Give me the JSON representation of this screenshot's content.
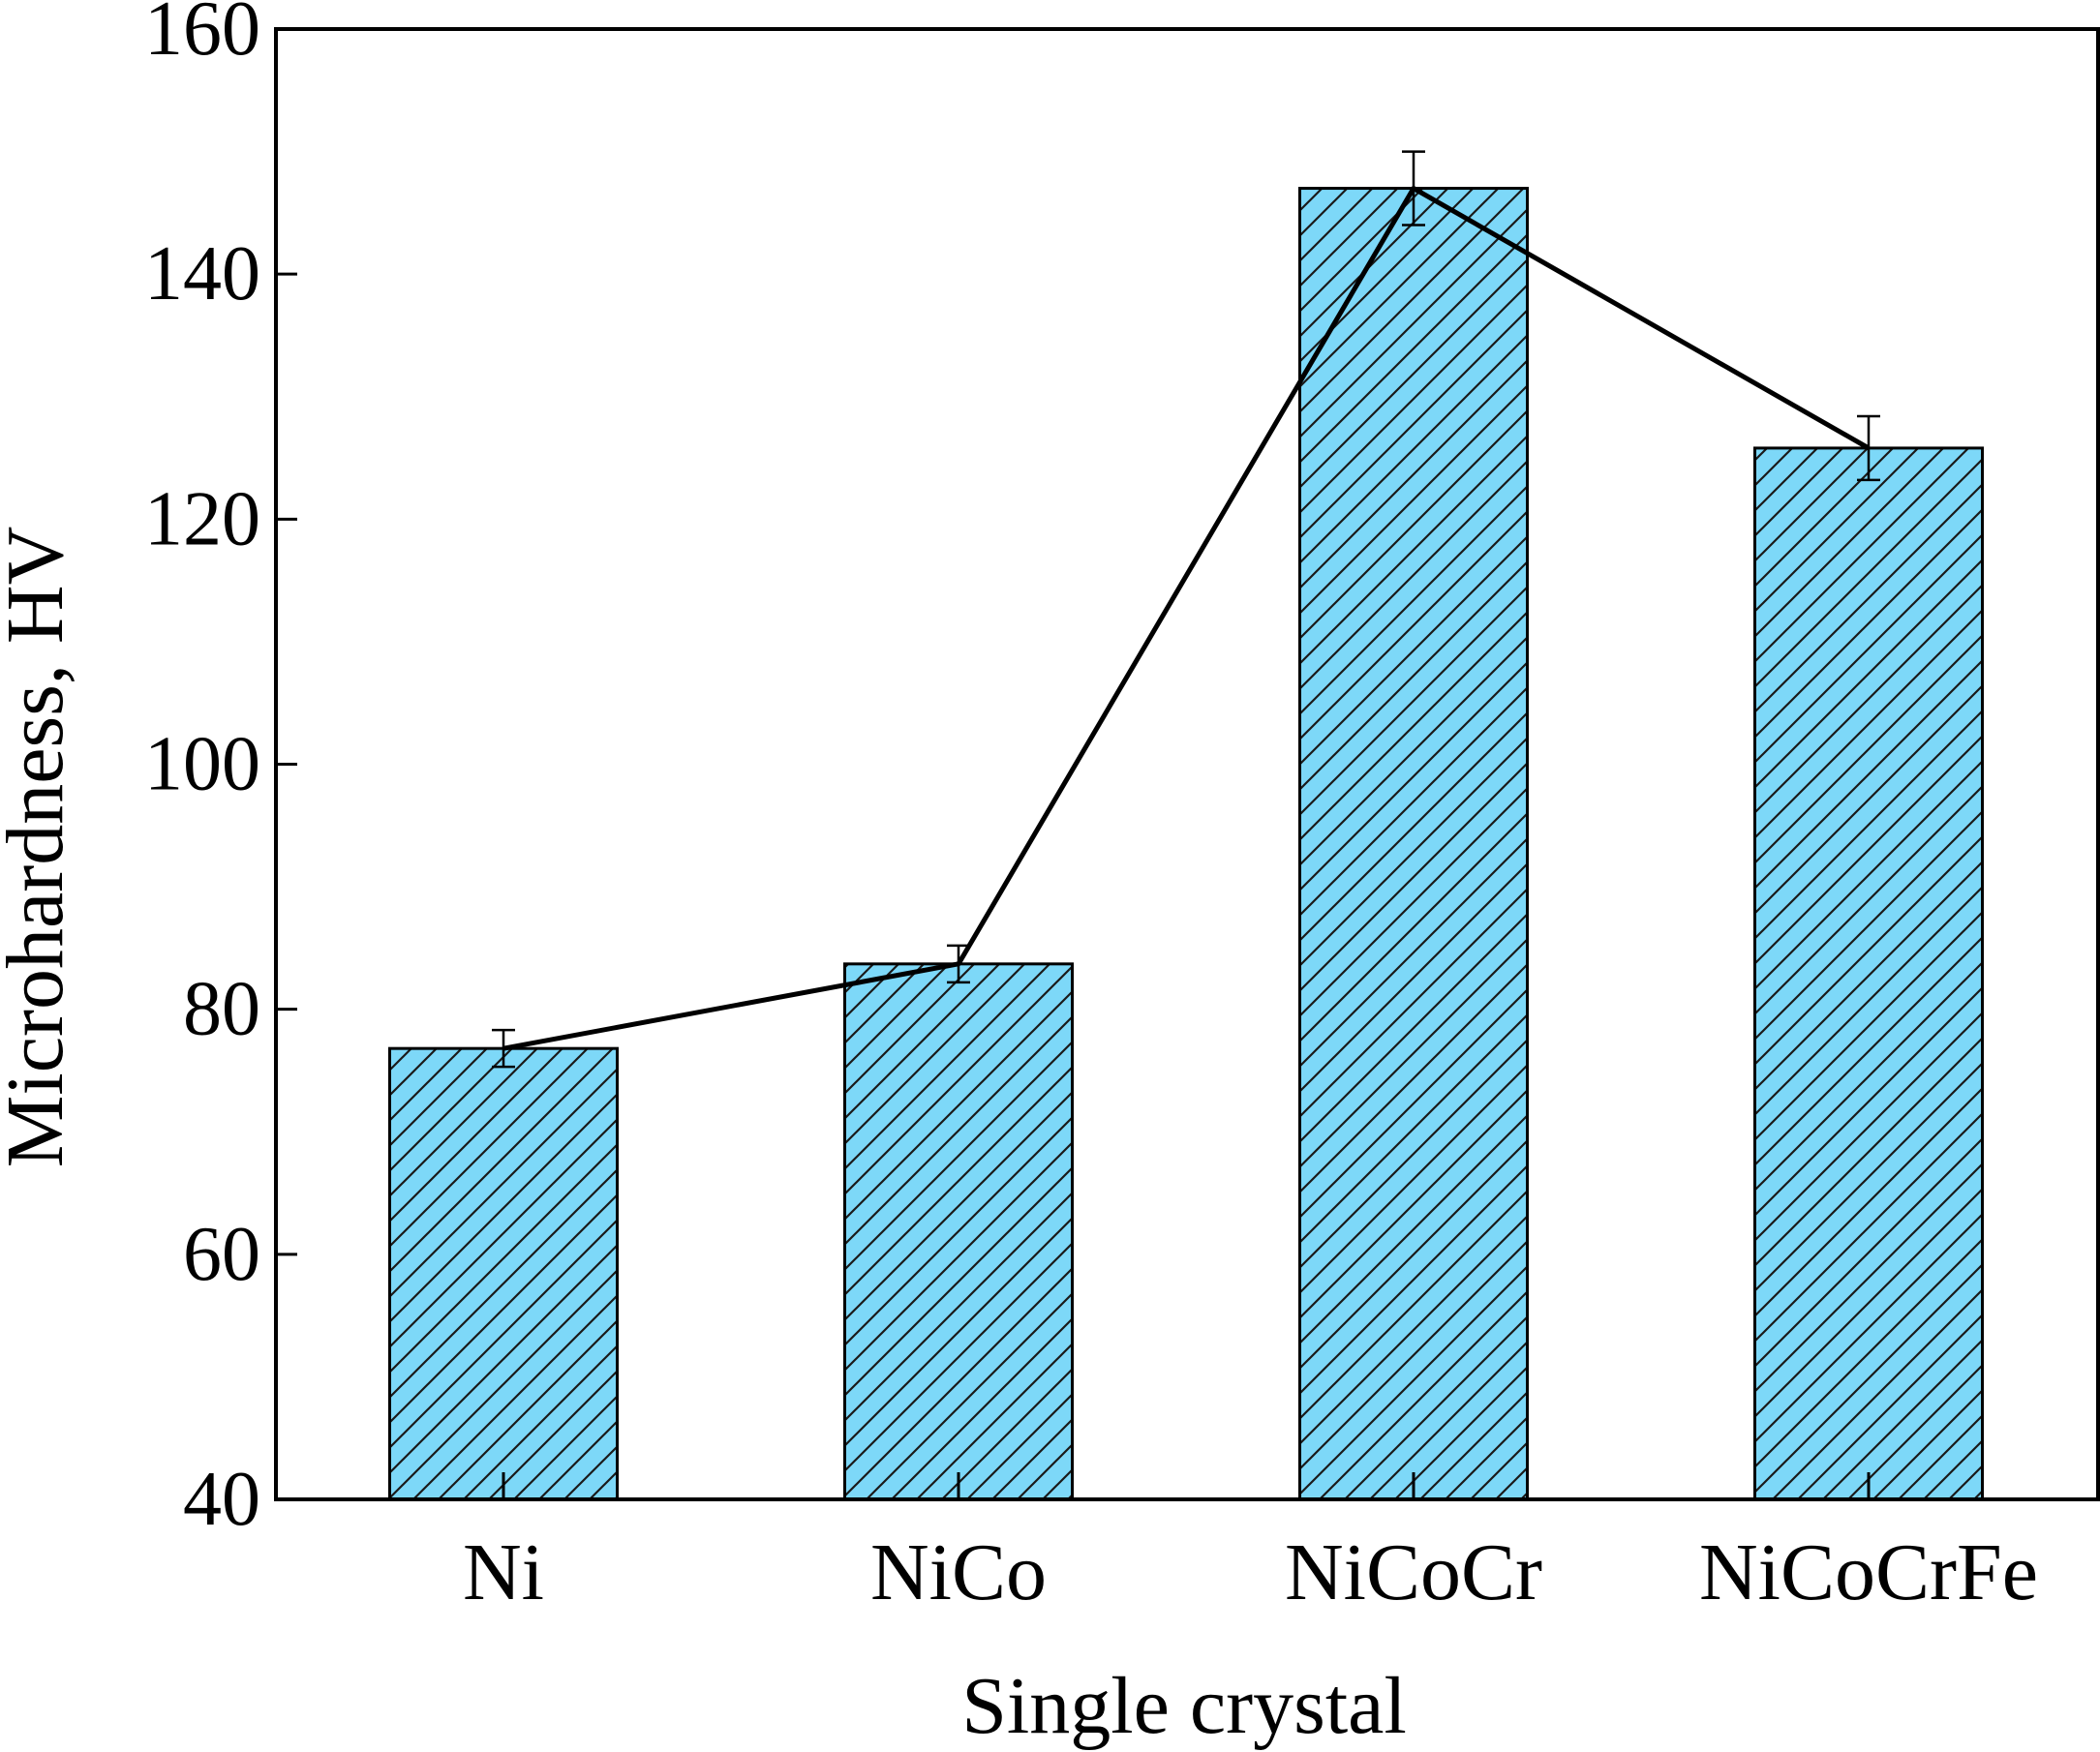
{
  "chart_data": {
    "type": "bar",
    "title": "",
    "xlabel": "Single crystal",
    "ylabel": "Microhardness, HV",
    "categories": [
      "Ni",
      "NiCo",
      "NiCoCr",
      "NiCoCrFe"
    ],
    "values": [
      76.8,
      83.7,
      147.0,
      125.8
    ],
    "errors": [
      1.5,
      1.5,
      3.0,
      2.6
    ],
    "overlay_line": true,
    "ylim": [
      40,
      160
    ],
    "yticks": [
      40,
      60,
      80,
      100,
      120,
      140,
      160
    ],
    "grid": false,
    "legend": "none",
    "colors": {
      "bar_fill": "#7dd8f8",
      "hatch": "#1a1a1a",
      "axis": "#000000",
      "line": "#000000"
    }
  }
}
